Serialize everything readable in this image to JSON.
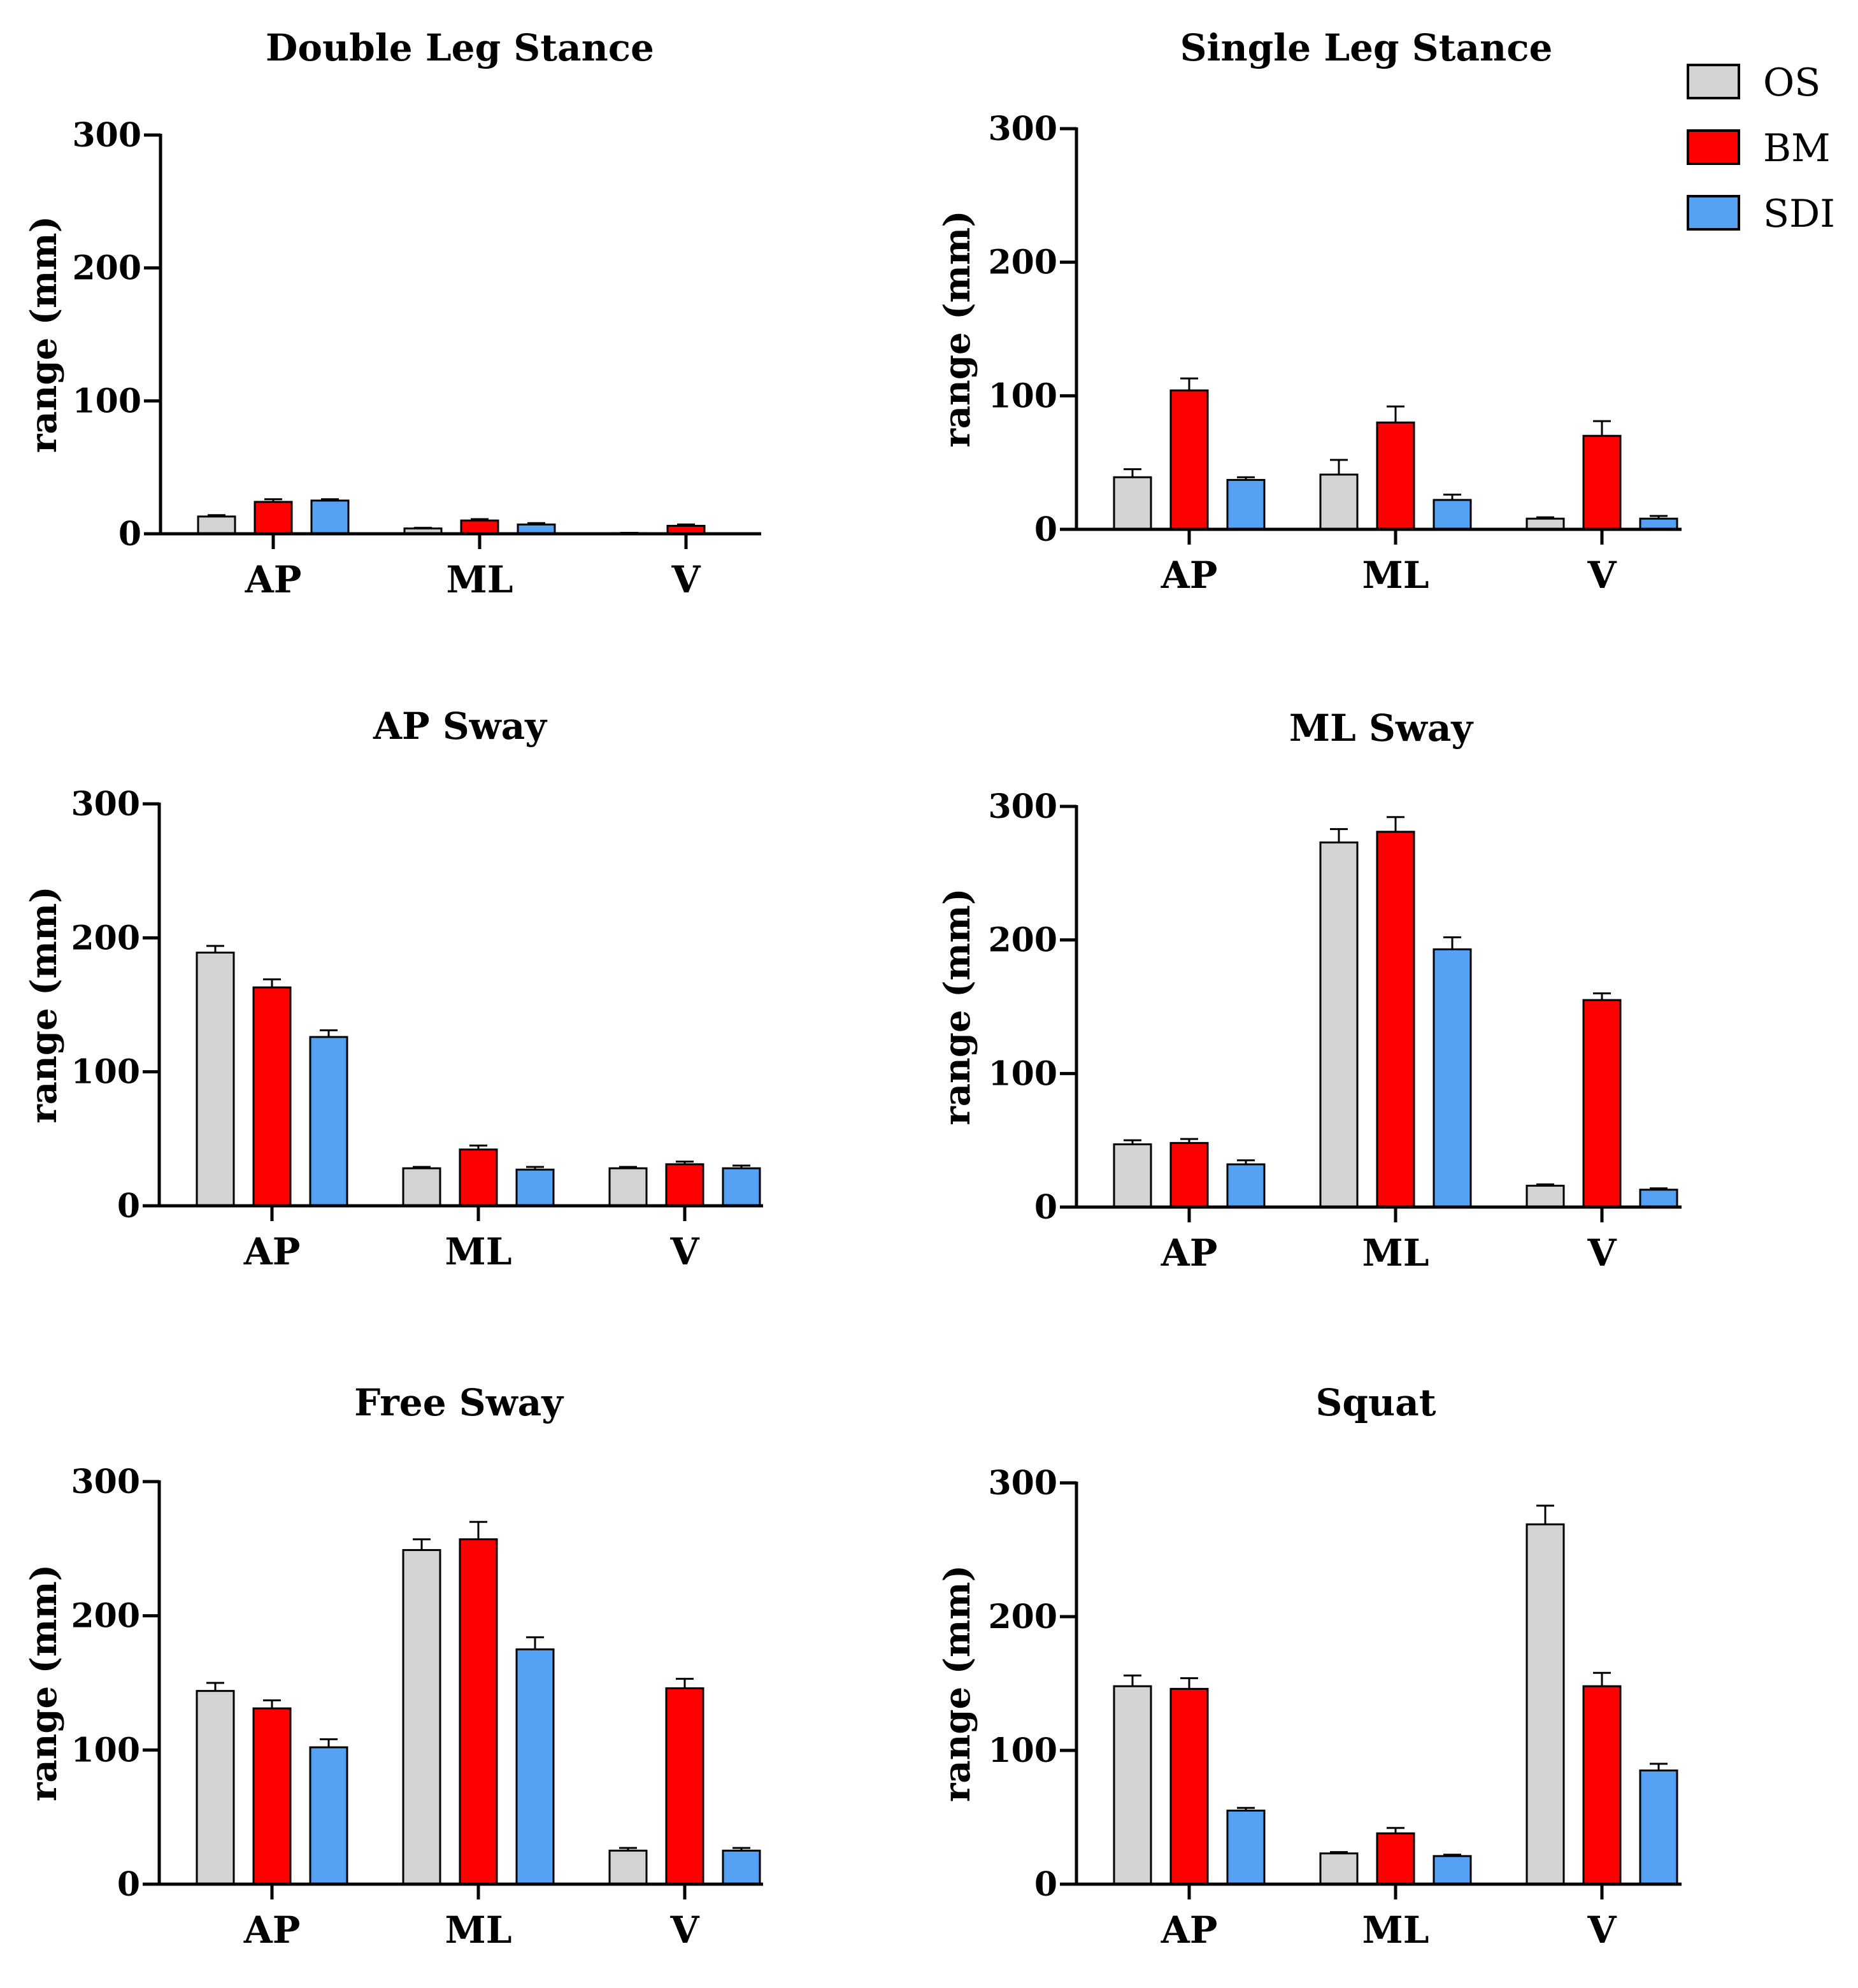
{
  "chart_data": [
    {
      "type": "bar",
      "title": "Double Leg Stance",
      "xlabel": "",
      "ylabel": "range (mm)",
      "ylim": [
        0,
        300
      ],
      "yticks": [
        0,
        100,
        200,
        300
      ],
      "categories": [
        "AP",
        "ML",
        "V"
      ],
      "series": [
        {
          "name": "OS",
          "values": [
            13,
            4,
            0.5
          ],
          "errors": [
            1,
            0.5,
            0.2
          ]
        },
        {
          "name": "BM",
          "values": [
            24,
            10,
            6
          ],
          "errors": [
            2,
            1,
            1
          ]
        },
        {
          "name": "SDI",
          "values": [
            25,
            7,
            0
          ],
          "errors": [
            1,
            1,
            0
          ]
        }
      ]
    },
    {
      "type": "bar",
      "title": "Single Leg Stance",
      "xlabel": "",
      "ylabel": "range (mm)",
      "ylim": [
        0,
        300
      ],
      "yticks": [
        0,
        100,
        200,
        300
      ],
      "categories": [
        "AP",
        "ML",
        "V"
      ],
      "series": [
        {
          "name": "OS",
          "values": [
            39,
            41,
            8
          ],
          "errors": [
            6,
            11,
            1
          ]
        },
        {
          "name": "BM",
          "values": [
            104,
            80,
            70
          ],
          "errors": [
            9,
            12,
            11
          ]
        },
        {
          "name": "SDI",
          "values": [
            37,
            22,
            8
          ],
          "errors": [
            2,
            4,
            2
          ]
        }
      ]
    },
    {
      "type": "bar",
      "title": "AP Sway",
      "xlabel": "",
      "ylabel": "range (mm)",
      "ylim": [
        0,
        300
      ],
      "yticks": [
        0,
        100,
        200,
        300
      ],
      "categories": [
        "AP",
        "ML",
        "V"
      ],
      "series": [
        {
          "name": "OS",
          "values": [
            189,
            28,
            28
          ],
          "errors": [
            5,
            1,
            1
          ]
        },
        {
          "name": "BM",
          "values": [
            163,
            42,
            31
          ],
          "errors": [
            6,
            3,
            2
          ]
        },
        {
          "name": "SDI",
          "values": [
            126,
            27,
            28
          ],
          "errors": [
            5,
            2,
            2
          ]
        }
      ]
    },
    {
      "type": "bar",
      "title": "ML Sway",
      "xlabel": "",
      "ylabel": "range (mm)",
      "ylim": [
        0,
        300
      ],
      "yticks": [
        0,
        100,
        200,
        300
      ],
      "categories": [
        "AP",
        "ML",
        "V"
      ],
      "series": [
        {
          "name": "OS",
          "values": [
            47,
            273,
            16
          ],
          "errors": [
            3,
            10,
            1
          ]
        },
        {
          "name": "BM",
          "values": [
            48,
            281,
            155
          ],
          "errors": [
            3,
            11,
            5
          ]
        },
        {
          "name": "SDI",
          "values": [
            32,
            193,
            13
          ],
          "errors": [
            3,
            9,
            1
          ]
        }
      ]
    },
    {
      "type": "bar",
      "title": "Free Sway",
      "xlabel": "",
      "ylabel": "range (mm)",
      "ylim": [
        0,
        300
      ],
      "yticks": [
        0,
        100,
        200,
        300
      ],
      "categories": [
        "AP",
        "ML",
        "V"
      ],
      "series": [
        {
          "name": "OS",
          "values": [
            144,
            249,
            25
          ],
          "errors": [
            6,
            8,
            2
          ]
        },
        {
          "name": "BM",
          "values": [
            131,
            257,
            146
          ],
          "errors": [
            6,
            13,
            7
          ]
        },
        {
          "name": "SDI",
          "values": [
            102,
            175,
            25
          ],
          "errors": [
            6,
            9,
            2
          ]
        }
      ]
    },
    {
      "type": "bar",
      "title": "Squat",
      "xlabel": "",
      "ylabel": "range (mm)",
      "ylim": [
        0,
        300
      ],
      "yticks": [
        0,
        100,
        200,
        300
      ],
      "categories": [
        "AP",
        "ML",
        "V"
      ],
      "series": [
        {
          "name": "OS",
          "values": [
            148,
            23,
            269
          ],
          "errors": [
            8,
            1,
            14
          ]
        },
        {
          "name": "BM",
          "values": [
            146,
            38,
            148
          ],
          "errors": [
            8,
            4,
            10
          ]
        },
        {
          "name": "SDI",
          "values": [
            55,
            21,
            85
          ],
          "errors": [
            2,
            1,
            5
          ]
        }
      ]
    }
  ],
  "legend": {
    "placement": "top-right",
    "items": [
      {
        "label": "OS",
        "color": "#d3d3d3"
      },
      {
        "label": "BM",
        "color": "#ff0000"
      },
      {
        "label": "SDI",
        "color": "#55a2f5"
      }
    ]
  }
}
